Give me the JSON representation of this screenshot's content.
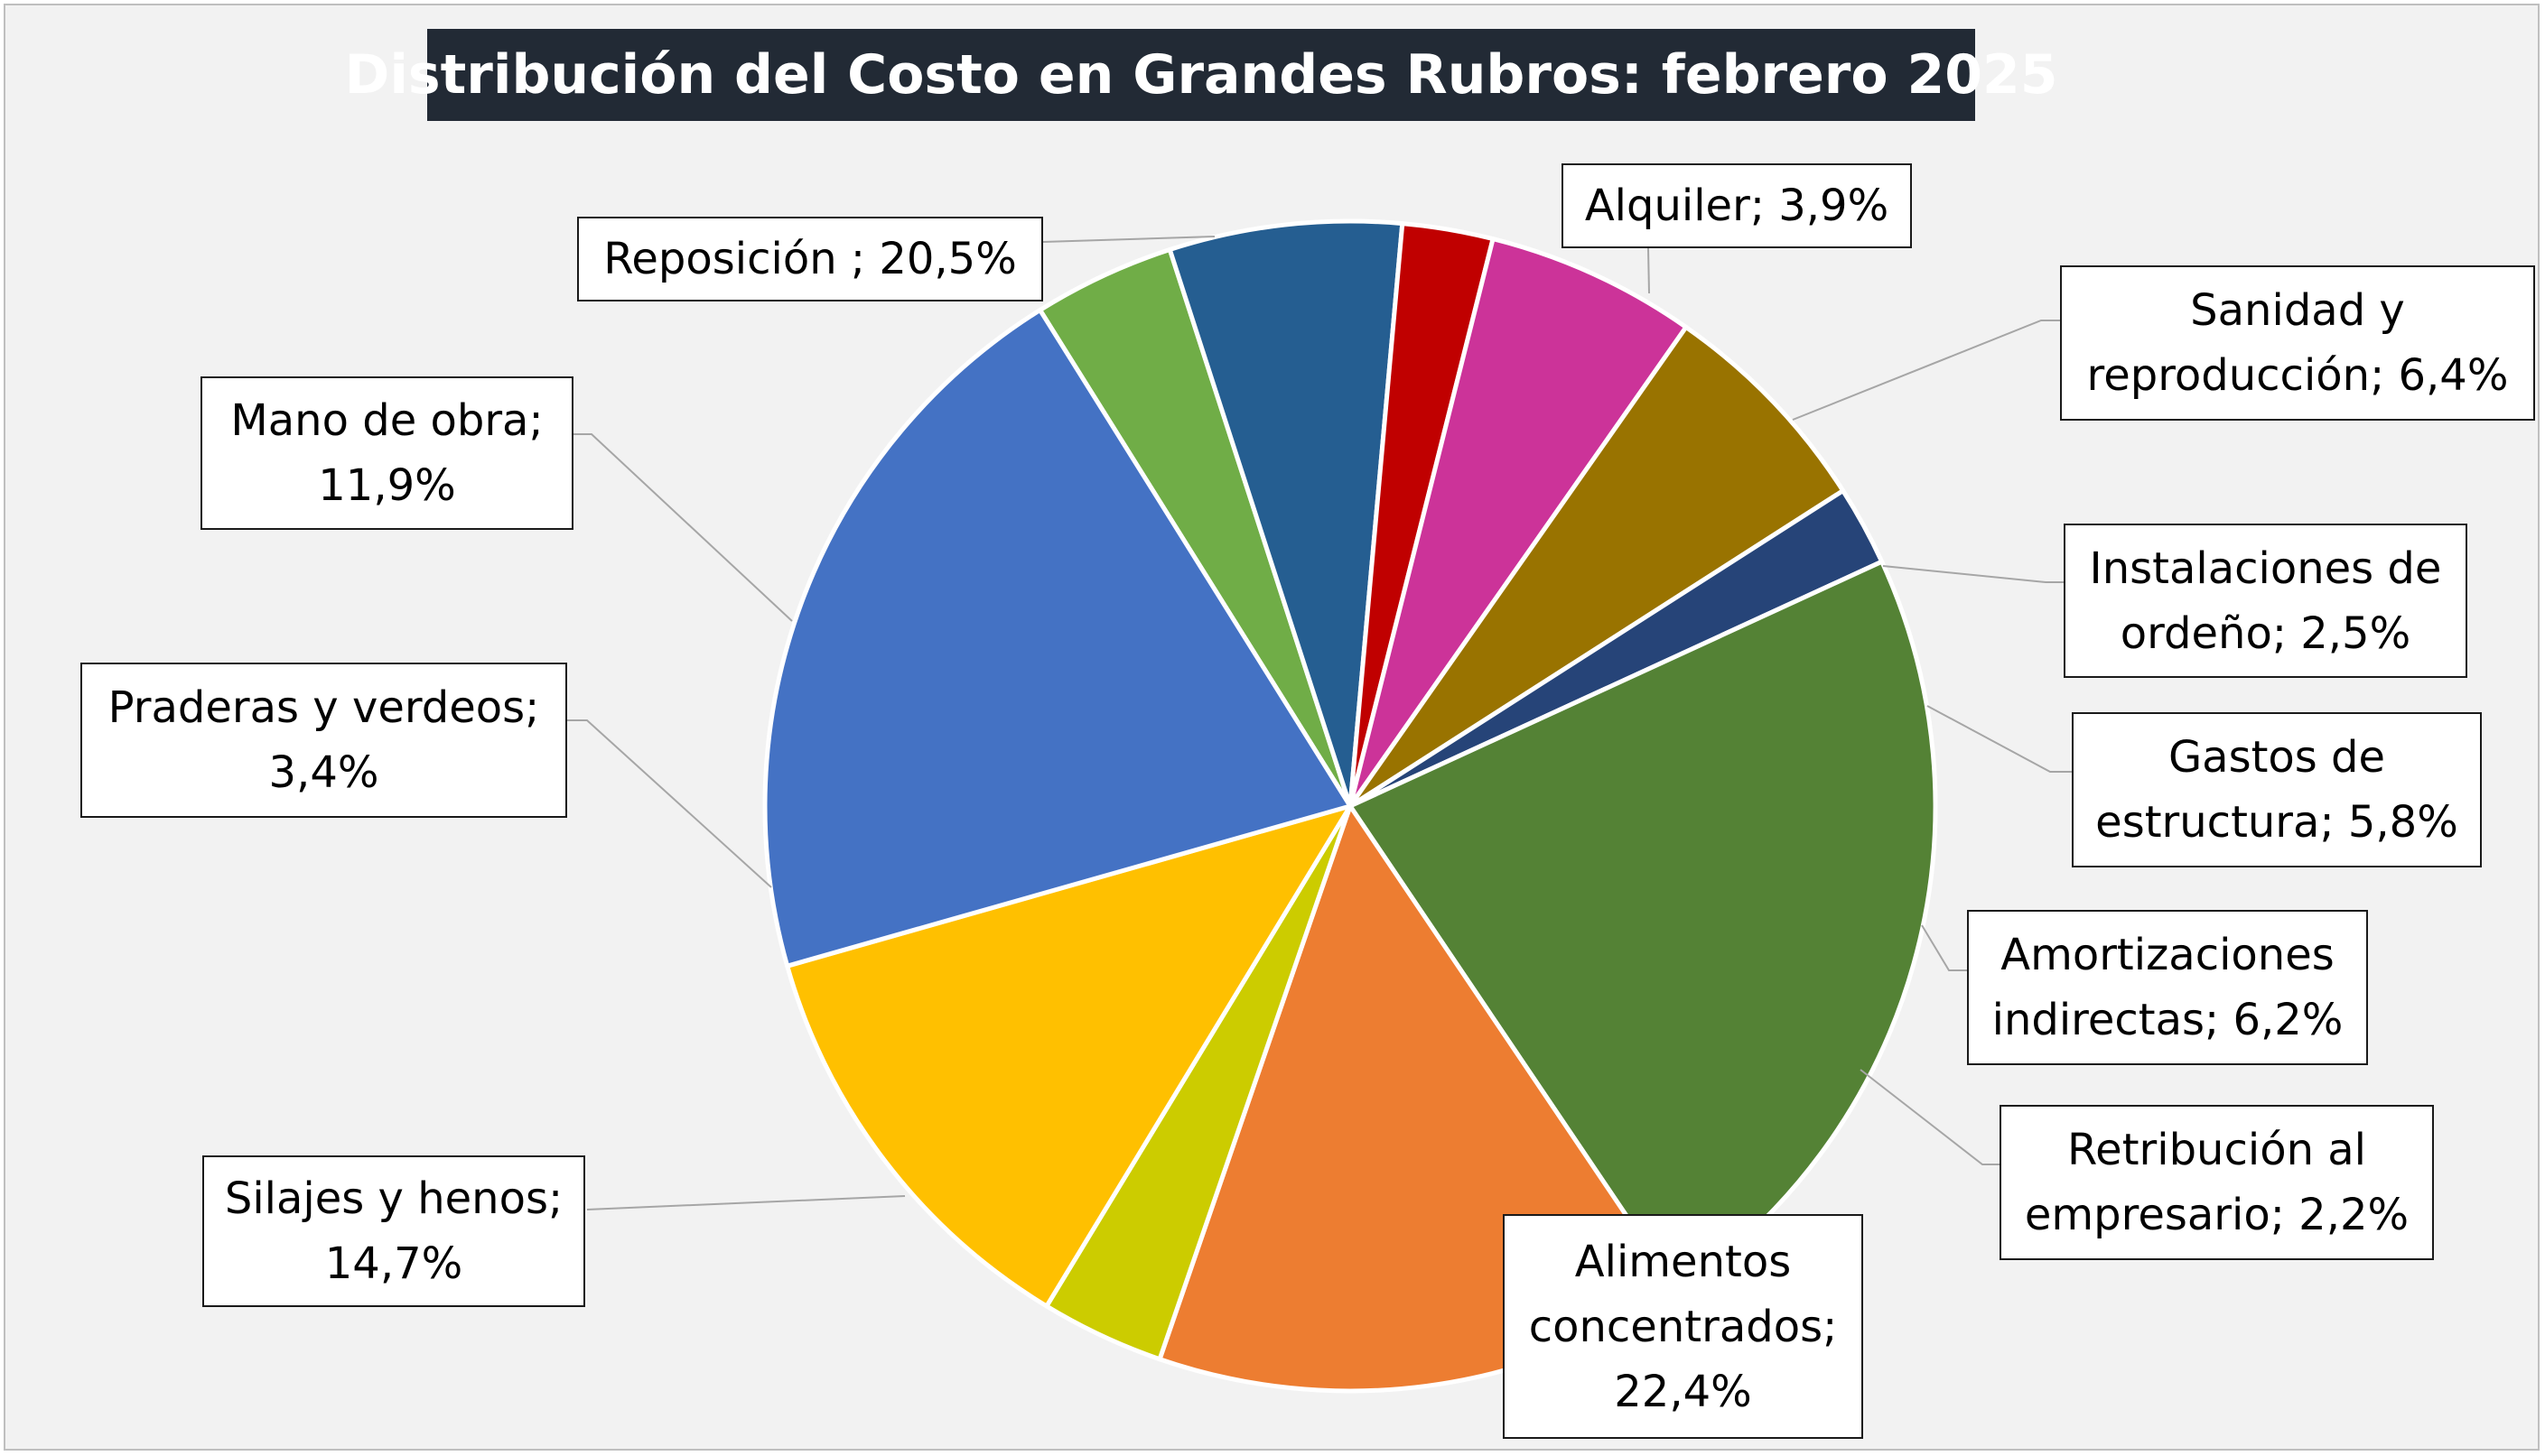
{
  "chart_data": {
    "type": "pie",
    "title": "Distribución del Costo en Grandes Rubros: febrero 2025",
    "start_angle_deg": -32,
    "slices": [
      {
        "label": "Alquiler; 3,9%",
        "value": 3.9,
        "color": "#70ad47"
      },
      {
        "label": "Sanidad y\nreproducción; 6,4%",
        "value": 6.4,
        "color": "#255e91"
      },
      {
        "label": "Instalaciones de\nordeño; 2,5%",
        "value": 2.5,
        "color": "#c00000"
      },
      {
        "label": "Gastos de\nestructura; 5,8%",
        "value": 5.8,
        "color": "#cc3399"
      },
      {
        "label": "Amortizaciones\nindirectas; 6,2%",
        "value": 6.2,
        "color": "#997300"
      },
      {
        "label": "Retribución al\nempresario; 2,2%",
        "value": 2.2,
        "color": "#264478"
      },
      {
        "label": "Alimentos\nconcentrados;\n22,4%",
        "value": 22.4,
        "color": "#548235"
      },
      {
        "label": "Silajes y henos;\n14,7%",
        "value": 14.7,
        "color": "#ed7d31"
      },
      {
        "label": "Praderas y verdeos;\n3,4%",
        "value": 3.4,
        "color": "#cccc00"
      },
      {
        "label": "Mano de obra;\n11,9%",
        "value": 11.9,
        "color": "#ffc000"
      },
      {
        "label": "Reposición ; 20,5%",
        "value": 20.5,
        "color": "#4472c4"
      }
    ]
  }
}
